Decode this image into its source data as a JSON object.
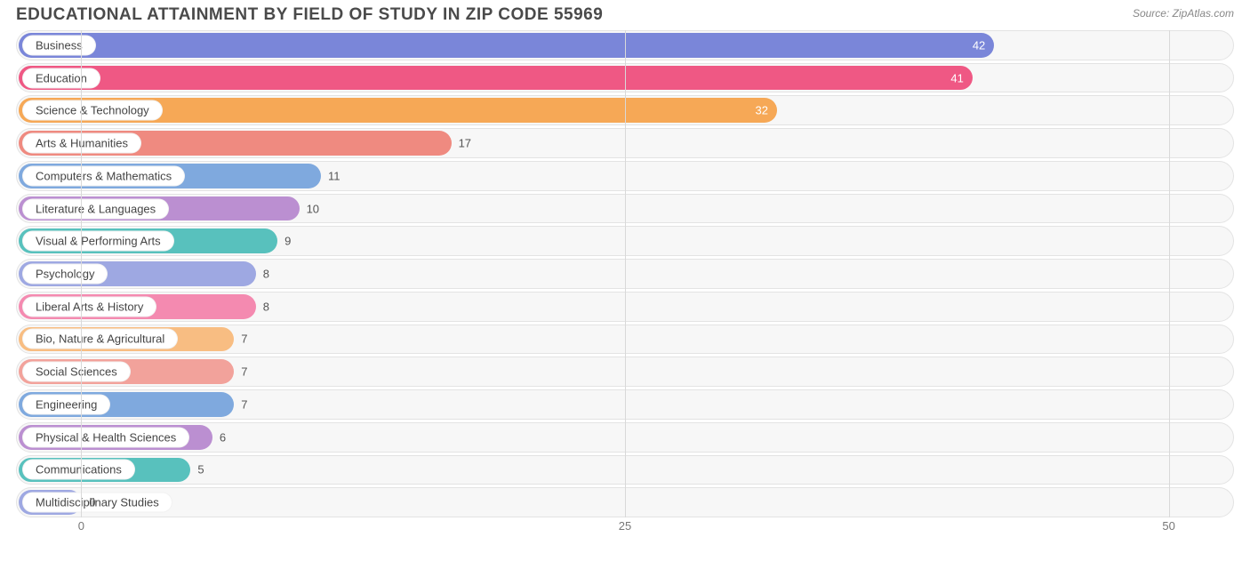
{
  "title": "EDUCATIONAL ATTAINMENT BY FIELD OF STUDY IN ZIP CODE 55969",
  "source": "Source: ZipAtlas.com",
  "chart": {
    "type": "bar-horizontal",
    "xlim": [
      -3,
      53
    ],
    "ticks": [
      0,
      25,
      50
    ],
    "background_color": "#ffffff",
    "row_bg": "#f7f7f7",
    "row_border": "#e3e3e3",
    "grid_color": "#d9d9d9",
    "title_fontsize": 19,
    "label_fontsize": 13,
    "pill_bg": "#ffffff",
    "pill_text": "#444444",
    "value_text_outside": "#555555",
    "value_text_inside": "#ffffff",
    "bars": [
      {
        "label": "Business",
        "value": 42,
        "color": "#7a86d9",
        "inside": true
      },
      {
        "label": "Education",
        "value": 41,
        "color": "#ef5884",
        "inside": true
      },
      {
        "label": "Science & Technology",
        "value": 32,
        "color": "#f6a856",
        "inside": true
      },
      {
        "label": "Arts & Humanities",
        "value": 17,
        "color": "#ef8a80",
        "inside": false
      },
      {
        "label": "Computers & Mathematics",
        "value": 11,
        "color": "#7fa9de",
        "inside": false
      },
      {
        "label": "Literature & Languages",
        "value": 10,
        "color": "#bb8fd1",
        "inside": false
      },
      {
        "label": "Visual & Performing Arts",
        "value": 9,
        "color": "#58c1bd",
        "inside": false
      },
      {
        "label": "Psychology",
        "value": 8,
        "color": "#9ea8e2",
        "inside": false
      },
      {
        "label": "Liberal Arts & History",
        "value": 8,
        "color": "#f48ab0",
        "inside": false
      },
      {
        "label": "Bio, Nature & Agricultural",
        "value": 7,
        "color": "#f8bd82",
        "inside": false
      },
      {
        "label": "Social Sciences",
        "value": 7,
        "color": "#f2a29b",
        "inside": false
      },
      {
        "label": "Engineering",
        "value": 7,
        "color": "#7fa9de",
        "inside": false
      },
      {
        "label": "Physical & Health Sciences",
        "value": 6,
        "color": "#bb8fd1",
        "inside": false
      },
      {
        "label": "Communications",
        "value": 5,
        "color": "#58c1bd",
        "inside": false
      },
      {
        "label": "Multidisciplinary Studies",
        "value": 0,
        "color": "#9ea8e2",
        "inside": false
      }
    ]
  }
}
